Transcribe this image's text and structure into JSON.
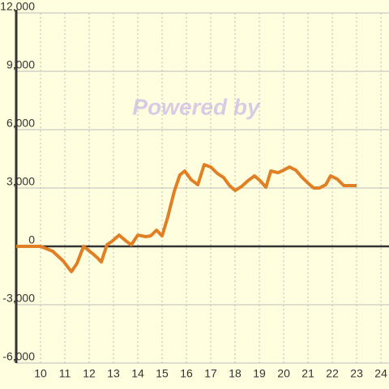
{
  "chart_data": {
    "type": "line",
    "watermark": "Powered by",
    "x": [
      9.0,
      10.0,
      10.5,
      10.93,
      11.27,
      11.5,
      11.77,
      12.1,
      12.33,
      12.5,
      12.73,
      12.93,
      13.23,
      13.5,
      13.73,
      14.0,
      14.33,
      14.53,
      14.77,
      15.0,
      15.23,
      15.5,
      15.73,
      15.93,
      16.2,
      16.47,
      16.73,
      17.0,
      17.27,
      17.53,
      17.77,
      18.0,
      18.27,
      18.53,
      18.8,
      19.03,
      19.27,
      19.47,
      19.77,
      20.0,
      20.23,
      20.5,
      20.73,
      21.0,
      21.23,
      21.47,
      21.73,
      21.93,
      22.2,
      22.47,
      22.73,
      23.0
    ],
    "series": [
      {
        "color": "#e17f24",
        "values": [
          0,
          0,
          -250,
          -750,
          -1300,
          -875,
          0,
          -330,
          -580,
          -800,
          80,
          250,
          580,
          290,
          80,
          580,
          500,
          540,
          830,
          540,
          1500,
          2830,
          3670,
          3875,
          3420,
          3170,
          4200,
          4080,
          3750,
          3540,
          3125,
          2875,
          3080,
          3375,
          3625,
          3375,
          3040,
          3875,
          3790,
          3920,
          4080,
          3920,
          3580,
          3250,
          3000,
          3000,
          3170,
          3625,
          3460,
          3125,
          3125,
          3125
        ]
      }
    ],
    "xlim": [
      9,
      24.33
    ],
    "xticks": [
      10,
      11,
      12,
      13,
      14,
      15,
      16,
      17,
      18,
      19,
      20,
      21,
      22,
      23,
      24
    ],
    "ylim": [
      -6000,
      12000
    ],
    "yticks": [
      {
        "value": -6000,
        "label": "-6,000"
      },
      {
        "value": -3000,
        "label": "-3,000"
      },
      0,
      {
        "value": 3000,
        "label": "3,000"
      },
      {
        "value": 6000,
        "label": "6,000"
      },
      {
        "value": 9000,
        "label": "9,000"
      },
      {
        "value": 12000,
        "label": "12,000"
      }
    ],
    "grid": true
  }
}
